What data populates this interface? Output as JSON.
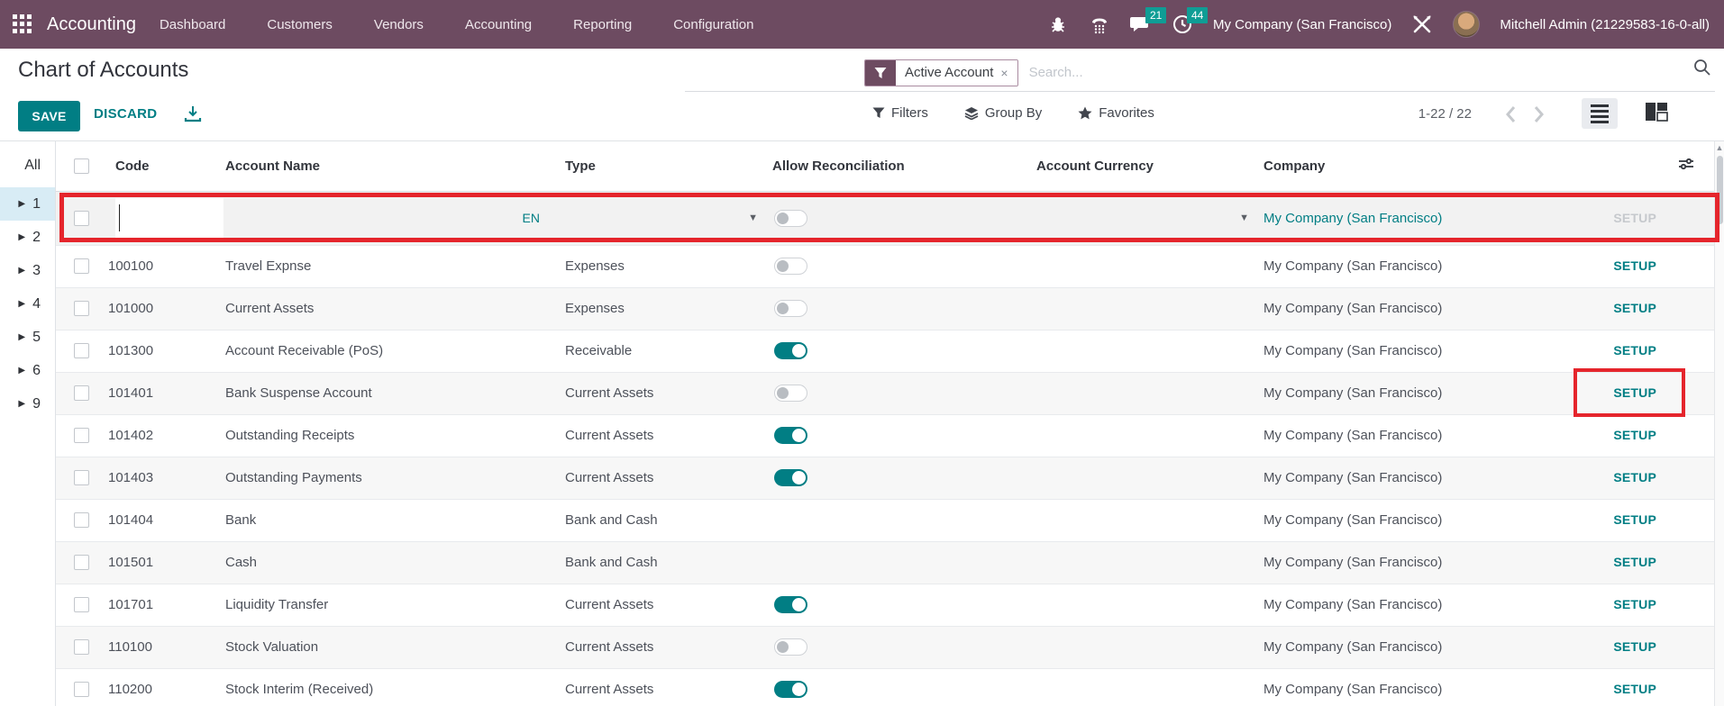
{
  "topbar": {
    "app_name": "Accounting",
    "menus": [
      "Dashboard",
      "Customers",
      "Vendors",
      "Accounting",
      "Reporting",
      "Configuration"
    ],
    "messages_badge": "21",
    "activities_badge": "44",
    "company": "My Company (San Francisco)",
    "user": "Mitchell Admin (21229583-16-0-all)"
  },
  "control_panel": {
    "title": "Chart of Accounts",
    "save": "SAVE",
    "discard": "DISCARD",
    "filter_chip": "Active Account",
    "filter_chip_close": "×",
    "search_placeholder": "Search...",
    "filters": "Filters",
    "group_by": "Group By",
    "favorites": "Favorites",
    "pager": "1-22 / 22"
  },
  "sidebar": {
    "all": "All",
    "groups": [
      "1",
      "2",
      "3",
      "4",
      "5",
      "6",
      "9"
    ],
    "active_group": "1"
  },
  "table": {
    "columns": [
      "Code",
      "Account Name",
      "Type",
      "Allow Reconciliation",
      "Account Currency",
      "Company"
    ],
    "setup": "SETUP",
    "new_row": {
      "code_value": "",
      "name_value": "",
      "lang_tag": "EN",
      "company": "My Company (San Francisco)",
      "setup": "SETUP"
    },
    "rows": [
      {
        "code": "100100",
        "name": "Travel Expnse",
        "type": "Expenses",
        "reconcile": "off",
        "currency": "",
        "company": "My Company (San Francisco)"
      },
      {
        "code": "101000",
        "name": "Current Assets",
        "type": "Expenses",
        "reconcile": "off",
        "currency": "",
        "company": "My Company (San Francisco)"
      },
      {
        "code": "101300",
        "name": "Account Receivable (PoS)",
        "type": "Receivable",
        "reconcile": "on",
        "currency": "",
        "company": "My Company (San Francisco)"
      },
      {
        "code": "101401",
        "name": "Bank Suspense Account",
        "type": "Current Assets",
        "reconcile": "off",
        "currency": "",
        "company": "My Company (San Francisco)",
        "setup_highlighted": true
      },
      {
        "code": "101402",
        "name": "Outstanding Receipts",
        "type": "Current Assets",
        "reconcile": "on",
        "currency": "",
        "company": "My Company (San Francisco)"
      },
      {
        "code": "101403",
        "name": "Outstanding Payments",
        "type": "Current Assets",
        "reconcile": "on",
        "currency": "",
        "company": "My Company (San Francisco)"
      },
      {
        "code": "101404",
        "name": "Bank",
        "type": "Bank and Cash",
        "reconcile": "none",
        "currency": "",
        "company": "My Company (San Francisco)"
      },
      {
        "code": "101501",
        "name": "Cash",
        "type": "Bank and Cash",
        "reconcile": "none",
        "currency": "",
        "company": "My Company (San Francisco)"
      },
      {
        "code": "101701",
        "name": "Liquidity Transfer",
        "type": "Current Assets",
        "reconcile": "on",
        "currency": "",
        "company": "My Company (San Francisco)"
      },
      {
        "code": "110100",
        "name": "Stock Valuation",
        "type": "Current Assets",
        "reconcile": "off",
        "currency": "",
        "company": "My Company (San Francisco)"
      },
      {
        "code": "110200",
        "name": "Stock Interim (Received)",
        "type": "Current Assets",
        "reconcile": "on",
        "currency": "",
        "company": "My Company (San Francisco)"
      }
    ]
  },
  "colors": {
    "brand_purple": "#6d4b61",
    "accent_teal": "#017e84",
    "badge_teal": "#0f9d95",
    "annotation_red": "#e5252c",
    "active_group_bg": "#d8ecf5"
  }
}
